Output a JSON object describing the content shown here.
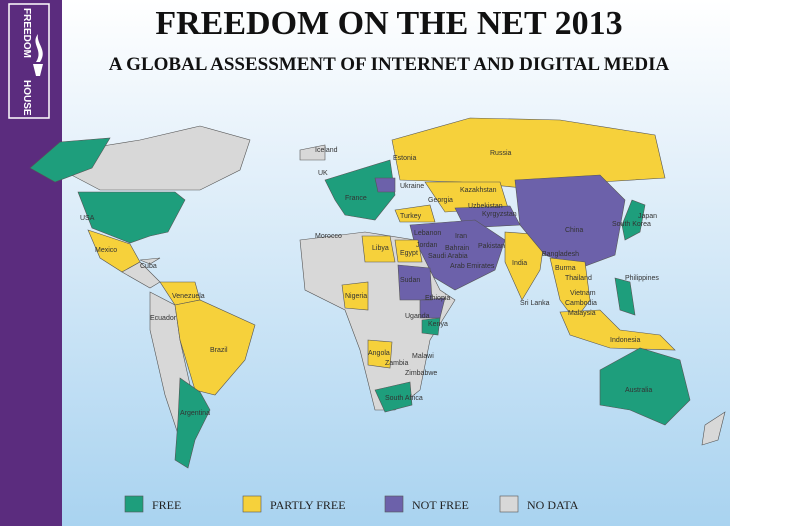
{
  "logo": {
    "top": "FREEDOM",
    "bottom": "HOUSE"
  },
  "header": {
    "title": "FREEDOM ON THE NET 2013",
    "subtitle": "A GLOBAL ASSESSMENT OF INTERNET AND DIGITAL MEDIA"
  },
  "legend": [
    {
      "label": "FREE",
      "color": "#1e9e7c"
    },
    {
      "label": "PARTLY FREE",
      "color": "#f6d13b"
    },
    {
      "label": "NOT FREE",
      "color": "#6c61aa"
    },
    {
      "label": "NO DATA",
      "color": "#d8d8d8"
    }
  ],
  "countries": [
    "Iceland",
    "UK",
    "France",
    "Estonia",
    "Ukraine",
    "Russia",
    "Kazakhstan",
    "Uzbekistan",
    "Kyrgyzstan",
    "Georgia",
    "Turkey",
    "Lebanon",
    "Jordan",
    "Morocco",
    "Libya",
    "Egypt",
    "Saudi Arabia",
    "Bahrain",
    "Arab Emirates",
    "Iran",
    "Pakistan",
    "India",
    "China",
    "Japan",
    "South Korea",
    "Bangladesh",
    "Burma",
    "Thailand",
    "Vietnam",
    "Cambodia",
    "Malaysia",
    "Philippines",
    "Indonesia",
    "Sri Lanka",
    "USA",
    "Mexico",
    "Cuba",
    "Venezuela",
    "Ecuador",
    "Brazil",
    "Argentina",
    "Nigeria",
    "Sudan",
    "Ethiopia",
    "Uganda",
    "Kenya",
    "Angola",
    "Malawi",
    "Zambia",
    "Zimbabwe",
    "South Africa",
    "Australia"
  ]
}
